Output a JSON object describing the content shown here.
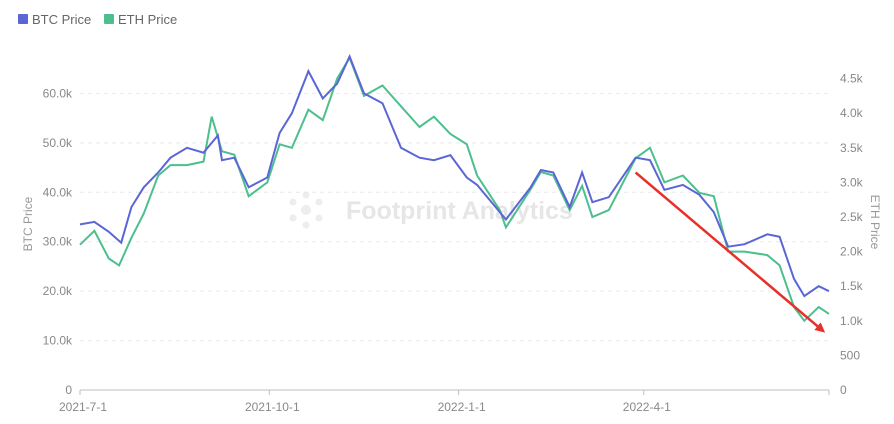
{
  "chart_data": {
    "type": "line",
    "legend": {
      "placement": "top-left"
    },
    "watermark": "Footprint Analytics",
    "x_axis": {
      "ticks": [
        "2021-7-1",
        "2021-10-1",
        "2022-1-1",
        "2022-4-1"
      ],
      "range": [
        "2021-07-01",
        "2022-06-30"
      ]
    },
    "y_axis_left": {
      "title": "BTC Price",
      "ticks": [
        "0",
        "10.0k",
        "20.0k",
        "30.0k",
        "40.0k",
        "50.0k",
        "60.0k"
      ],
      "tick_values": [
        0,
        10000,
        20000,
        30000,
        40000,
        50000,
        60000
      ],
      "range": [
        0,
        70000
      ]
    },
    "y_axis_right": {
      "title": "ETH Price",
      "ticks": [
        "0",
        "500",
        "1.0k",
        "1.5k",
        "2.0k",
        "2.5k",
        "3.0k",
        "3.5k",
        "4.0k",
        "4.5k"
      ],
      "tick_values": [
        0,
        500,
        1000,
        1500,
        2000,
        2500,
        3000,
        3500,
        4000,
        4500
      ],
      "range": [
        0,
        5000
      ]
    },
    "grid": true,
    "series": [
      {
        "name": "BTC Price",
        "axis": "left",
        "color": "#5b66d6",
        "points": [
          [
            "2021-07-01",
            33500
          ],
          [
            "2021-07-08",
            34000
          ],
          [
            "2021-07-15",
            32000
          ],
          [
            "2021-07-21",
            29800
          ],
          [
            "2021-07-26",
            37000
          ],
          [
            "2021-08-01",
            41000
          ],
          [
            "2021-08-08",
            44000
          ],
          [
            "2021-08-14",
            47000
          ],
          [
            "2021-08-22",
            49000
          ],
          [
            "2021-08-30",
            48000
          ],
          [
            "2021-09-06",
            51500
          ],
          [
            "2021-09-08",
            46500
          ],
          [
            "2021-09-14",
            47000
          ],
          [
            "2021-09-21",
            41000
          ],
          [
            "2021-09-30",
            43000
          ],
          [
            "2021-10-06",
            52000
          ],
          [
            "2021-10-12",
            56000
          ],
          [
            "2021-10-20",
            64500
          ],
          [
            "2021-10-27",
            59000
          ],
          [
            "2021-11-03",
            62000
          ],
          [
            "2021-11-09",
            67500
          ],
          [
            "2021-11-16",
            60000
          ],
          [
            "2021-11-25",
            58000
          ],
          [
            "2021-12-04",
            49000
          ],
          [
            "2021-12-13",
            47000
          ],
          [
            "2021-12-20",
            46500
          ],
          [
            "2021-12-28",
            47500
          ],
          [
            "2022-01-05",
            43000
          ],
          [
            "2022-01-10",
            41500
          ],
          [
            "2022-01-21",
            36000
          ],
          [
            "2022-01-24",
            34500
          ],
          [
            "2022-02-05",
            41000
          ],
          [
            "2022-02-10",
            44500
          ],
          [
            "2022-02-16",
            44000
          ],
          [
            "2022-02-24",
            37000
          ],
          [
            "2022-03-02",
            44000
          ],
          [
            "2022-03-07",
            38000
          ],
          [
            "2022-03-15",
            39000
          ],
          [
            "2022-03-28",
            47000
          ],
          [
            "2022-04-04",
            46500
          ],
          [
            "2022-04-11",
            40500
          ],
          [
            "2022-04-20",
            41500
          ],
          [
            "2022-04-28",
            39500
          ],
          [
            "2022-05-05",
            36000
          ],
          [
            "2022-05-12",
            29000
          ],
          [
            "2022-05-20",
            29500
          ],
          [
            "2022-05-31",
            31500
          ],
          [
            "2022-06-06",
            31000
          ],
          [
            "2022-06-13",
            22500
          ],
          [
            "2022-06-18",
            19000
          ],
          [
            "2022-06-25",
            21000
          ],
          [
            "2022-06-30",
            20000
          ]
        ]
      },
      {
        "name": "ETH Price",
        "axis": "right",
        "color": "#4dbf8d",
        "points": [
          [
            "2021-07-01",
            2100
          ],
          [
            "2021-07-08",
            2300
          ],
          [
            "2021-07-15",
            1900
          ],
          [
            "2021-07-20",
            1800
          ],
          [
            "2021-07-26",
            2200
          ],
          [
            "2021-08-01",
            2550
          ],
          [
            "2021-08-08",
            3100
          ],
          [
            "2021-08-14",
            3250
          ],
          [
            "2021-08-22",
            3250
          ],
          [
            "2021-08-30",
            3300
          ],
          [
            "2021-09-03",
            3950
          ],
          [
            "2021-09-08",
            3450
          ],
          [
            "2021-09-14",
            3400
          ],
          [
            "2021-09-21",
            2800
          ],
          [
            "2021-09-30",
            3000
          ],
          [
            "2021-10-06",
            3550
          ],
          [
            "2021-10-12",
            3500
          ],
          [
            "2021-10-20",
            4050
          ],
          [
            "2021-10-27",
            3900
          ],
          [
            "2021-11-03",
            4500
          ],
          [
            "2021-11-09",
            4800
          ],
          [
            "2021-11-16",
            4250
          ],
          [
            "2021-11-25",
            4400
          ],
          [
            "2021-12-04",
            4100
          ],
          [
            "2021-12-13",
            3800
          ],
          [
            "2021-12-20",
            3950
          ],
          [
            "2021-12-28",
            3700
          ],
          [
            "2022-01-05",
            3550
          ],
          [
            "2022-01-10",
            3100
          ],
          [
            "2022-01-21",
            2600
          ],
          [
            "2022-01-24",
            2350
          ],
          [
            "2022-02-05",
            2900
          ],
          [
            "2022-02-10",
            3150
          ],
          [
            "2022-02-16",
            3100
          ],
          [
            "2022-02-24",
            2600
          ],
          [
            "2022-03-02",
            2950
          ],
          [
            "2022-03-07",
            2500
          ],
          [
            "2022-03-15",
            2600
          ],
          [
            "2022-03-28",
            3350
          ],
          [
            "2022-04-04",
            3500
          ],
          [
            "2022-04-11",
            3000
          ],
          [
            "2022-04-20",
            3100
          ],
          [
            "2022-04-28",
            2850
          ],
          [
            "2022-05-05",
            2800
          ],
          [
            "2022-05-12",
            2000
          ],
          [
            "2022-05-20",
            2000
          ],
          [
            "2022-05-31",
            1950
          ],
          [
            "2022-06-06",
            1800
          ],
          [
            "2022-06-13",
            1200
          ],
          [
            "2022-06-18",
            1000
          ],
          [
            "2022-06-25",
            1200
          ],
          [
            "2022-06-30",
            1100
          ]
        ]
      }
    ],
    "annotations": [
      {
        "type": "arrow",
        "color": "#e8302a",
        "from": [
          "2022-03-28",
          44000
        ],
        "to": [
          "2022-06-27",
          12000
        ]
      }
    ]
  }
}
